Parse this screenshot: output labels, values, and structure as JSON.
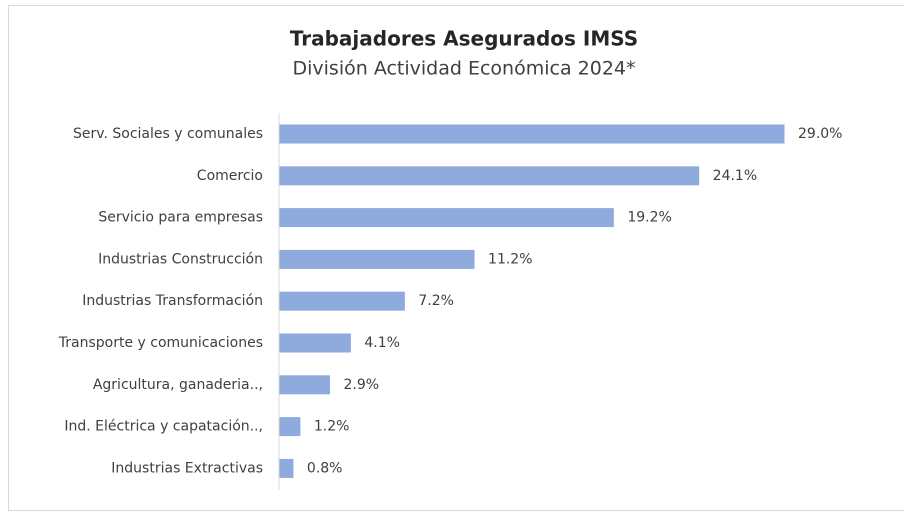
{
  "chart_data": {
    "type": "hbar",
    "title": "Trabajadores Asegurados IMSS",
    "subtitle": "División Actividad Económica 2024*",
    "categories": [
      "Serv. Sociales y comunales",
      "Comercio",
      "Servicio para empresas",
      "Industrias Construcción",
      "Industrias Transformación",
      "Transporte y comunicaciones",
      "Agricultura, ganaderia..,",
      "Ind. Eléctrica y capatación..,",
      "Industrias Extractivas"
    ],
    "values": [
      29.0,
      24.1,
      19.2,
      11.2,
      7.2,
      4.1,
      2.9,
      1.2,
      0.8
    ],
    "value_labels": [
      "29.0%",
      "24.1%",
      "19.2%",
      "11.2%",
      "7.2%",
      "4.1%",
      "2.9%",
      "1.2%",
      "0.8%"
    ],
    "color": "#8faadc"
  }
}
